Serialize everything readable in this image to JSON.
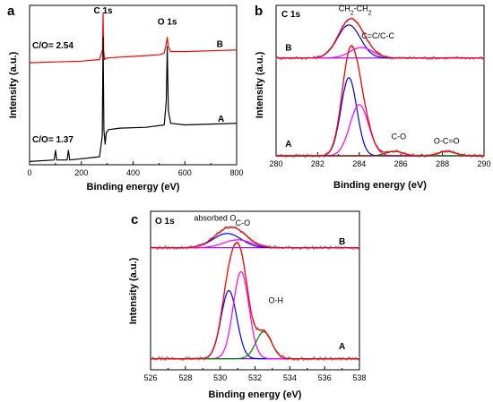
{
  "chart_data": [
    {
      "panel": "a",
      "type": "line",
      "title": "",
      "xlabel": "Binding energy (eV)",
      "ylabel": "Intensity (a.u.)",
      "xlim": [
        0,
        800
      ],
      "ylim": [
        0,
        100
      ],
      "xticks": [
        0,
        200,
        400,
        600,
        800
      ],
      "yticks_shown": false,
      "annotations": [
        {
          "text": "C 1s",
          "x": 284,
          "y": 95
        },
        {
          "text": "O 1s",
          "x": 532,
          "y": 88
        },
        {
          "text": "C/O= 2.54",
          "x": 90,
          "y": 73
        },
        {
          "text": "C/O= 1.37",
          "x": 90,
          "y": 14
        },
        {
          "text": "B",
          "x": 735,
          "y": 74
        },
        {
          "text": "A",
          "x": 740,
          "y": 27
        }
      ],
      "series": [
        {
          "name": "B",
          "color": "#ff0000",
          "x": [
            0,
            100,
            200,
            270,
            282,
            284,
            286,
            290,
            300,
            350,
            400,
            450,
            500,
            520,
            528,
            532,
            536,
            545,
            600,
            700,
            800
          ],
          "y": [
            64,
            64.5,
            65,
            66,
            72,
            95,
            72,
            66,
            67,
            67.5,
            68,
            68.5,
            69,
            70,
            76,
            80,
            74,
            71,
            71,
            71.5,
            72
          ]
        },
        {
          "name": "A",
          "color": "#000000",
          "x": [
            0,
            95,
            100,
            105,
            145,
            150,
            155,
            270,
            281,
            284,
            287,
            292,
            296,
            305,
            350,
            450,
            520,
            528,
            532,
            536,
            545,
            600,
            700,
            800
          ],
          "y": [
            2,
            3,
            9,
            3,
            3,
            9,
            3,
            5,
            18,
            80,
            22,
            13,
            20,
            22,
            23,
            23.5,
            25,
            40,
            74,
            34,
            26,
            25,
            25.5,
            26
          ]
        }
      ]
    },
    {
      "panel": "b",
      "type": "line",
      "title": "C 1s",
      "xlabel": "Binding energy (eV)",
      "ylabel": "Intensity (a.u.)",
      "xlim": [
        280,
        290
      ],
      "ylim": [
        0,
        100
      ],
      "xticks": [
        280,
        282,
        284,
        286,
        288,
        290
      ],
      "yticks_shown": false,
      "annotations": [
        {
          "text": "CH2-CH2",
          "x": 283.8,
          "y": 96
        },
        {
          "text": "C=C/C-C",
          "x": 284.9,
          "y": 78
        },
        {
          "text": "C-O",
          "x": 285.9,
          "y": 11
        },
        {
          "text": "O-C=O",
          "x": 288.2,
          "y": 8
        },
        {
          "text": "B",
          "x": 280.6,
          "y": 70
        },
        {
          "text": "A",
          "x": 280.6,
          "y": 6
        }
      ],
      "groups": [
        {
          "name": "B",
          "baseline": 65,
          "peaks": [
            {
              "label": "CH2-CH2",
              "color": "#0000ff",
              "center": 283.5,
              "height": 22,
              "width": 0.55
            },
            {
              "label": "C=C/C-C",
              "color": "#ff00ff",
              "center": 284.1,
              "height": 7,
              "width": 0.55
            }
          ],
          "envelope_color": "#ff0000",
          "raw_color": "#999999",
          "baseline_color": "#9900cc"
        },
        {
          "name": "A",
          "baseline": 0,
          "peaks": [
            {
              "label": "CH2-CH2",
              "color": "#0000ff",
              "center": 283.5,
              "height": 52,
              "width": 0.38
            },
            {
              "label": "C=C/C-C",
              "color": "#ff00ff",
              "center": 284.0,
              "height": 34,
              "width": 0.45
            },
            {
              "label": "C-O",
              "color": "#008000",
              "center": 285.7,
              "height": 3,
              "width": 0.4
            },
            {
              "label": "O-C=O",
              "color": "#800000",
              "center": 288.2,
              "height": 3,
              "width": 0.4
            }
          ],
          "envelope_color": "#ff0000",
          "raw_color": "#999999",
          "baseline_color": "#bb8800"
        }
      ]
    },
    {
      "panel": "c",
      "type": "line",
      "title": "O 1s",
      "xlabel": "Binding energy (eV)",
      "ylabel": "Intensity (a.u.)",
      "xlim": [
        526,
        538
      ],
      "ylim": [
        0,
        100
      ],
      "xticks": [
        526,
        528,
        530,
        532,
        534,
        536,
        538
      ],
      "yticks_shown": false,
      "annotations": [
        {
          "text": "absorbed O",
          "x": 529.7,
          "y": 94
        },
        {
          "text": "C-O",
          "x": 531.3,
          "y": 91
        },
        {
          "text": "O-H",
          "x": 533.2,
          "y": 42
        },
        {
          "text": "B",
          "x": 537.0,
          "y": 79
        },
        {
          "text": "A",
          "x": 537.0,
          "y": 13
        }
      ],
      "groups": [
        {
          "name": "B",
          "baseline": 77,
          "peaks": [
            {
              "label": "absorbed O",
              "color": "#0000ff",
              "center": 530.4,
              "height": 9,
              "width": 0.8
            },
            {
              "label": "C-O",
              "color": "#ff00ff",
              "center": 531.0,
              "height": 5,
              "width": 0.8
            }
          ],
          "envelope_color": "#ff0000",
          "raw_color": "#999999",
          "baseline_color": "#9900cc"
        },
        {
          "name": "A",
          "baseline": 7,
          "peaks": [
            {
              "label": "absorbed O",
              "color": "#0000ff",
              "center": 530.5,
              "height": 43,
              "width": 0.45
            },
            {
              "label": "C-O",
              "color": "#ff00ff",
              "center": 531.2,
              "height": 55,
              "width": 0.45
            },
            {
              "label": "O-H",
              "color": "#008000",
              "center": 532.5,
              "height": 17,
              "width": 0.45
            }
          ],
          "envelope_color": "#ff0000",
          "raw_color": "#999999",
          "baseline_color": "#9900cc"
        }
      ]
    }
  ]
}
